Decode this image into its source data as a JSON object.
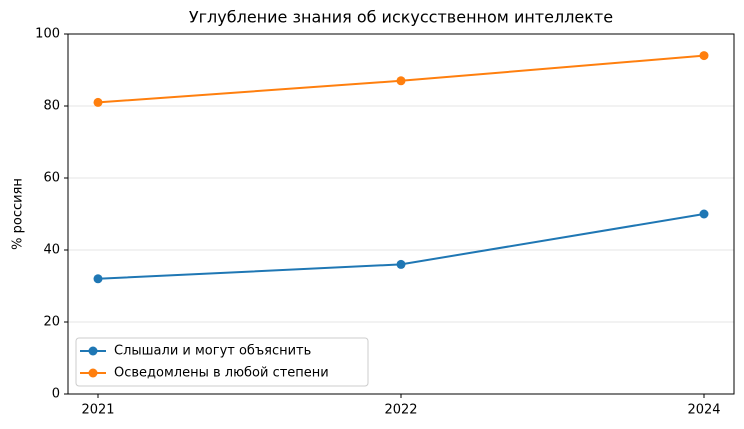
{
  "chart_data": {
    "type": "line",
    "title": "Углубление знания об искусственном интеллекте",
    "ylabel": "% россиян",
    "categories": [
      "2021",
      "2022",
      "2024"
    ],
    "series": [
      {
        "name": "Слышали и могут объяснить",
        "color": "#1f77b4",
        "values": [
          32,
          36,
          50
        ]
      },
      {
        "name": "Осведомлены в любой степени",
        "color": "#ff7f0e",
        "values": [
          81,
          87,
          94
        ]
      }
    ],
    "ylim": [
      0,
      100
    ],
    "yticks": [
      0,
      20,
      40,
      60,
      80,
      100
    ],
    "grid": true,
    "legend": "lower left"
  }
}
